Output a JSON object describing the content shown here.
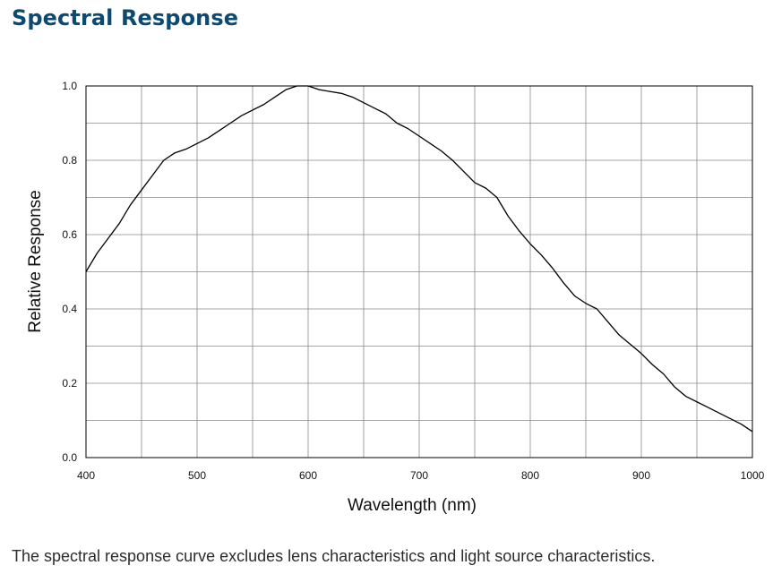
{
  "page": {
    "title": "Spectral Response",
    "footnote": "The spectral response curve excludes lens characteristics and light source characteristics."
  },
  "colors": {
    "title": "#0b4a72",
    "curve": "#000000",
    "grid": "#8a8a8a",
    "frame": "#000000"
  },
  "chart_data": {
    "type": "line",
    "title": "",
    "xlabel": "Wavelength (nm)",
    "ylabel": "Relative Response",
    "xlim": [
      400,
      1000
    ],
    "ylim": [
      0.0,
      1.0
    ],
    "grid": true,
    "x_ticks": [
      400,
      500,
      600,
      700,
      800,
      900,
      1000
    ],
    "x_tick_labels": [
      "400",
      "500",
      "600",
      "700",
      "800",
      "900",
      "1000"
    ],
    "y_ticks": [
      0.0,
      0.2,
      0.4,
      0.6,
      0.8,
      1.0
    ],
    "y_tick_labels": [
      "0.0",
      "0.2",
      "0.4",
      "0.6",
      "0.8",
      "1.0"
    ],
    "series": [
      {
        "x": [
          400,
          410,
          420,
          430,
          440,
          450,
          460,
          470,
          480,
          490,
          500,
          510,
          520,
          530,
          540,
          550,
          560,
          570,
          580,
          590,
          600,
          610,
          620,
          630,
          640,
          650,
          660,
          670,
          680,
          690,
          700,
          710,
          720,
          730,
          740,
          750,
          760,
          770,
          780,
          790,
          800,
          810,
          820,
          830,
          840,
          850,
          860,
          870,
          880,
          890,
          900,
          910,
          920,
          930,
          940,
          950,
          960,
          970,
          980,
          990,
          1000
        ],
        "y": [
          0.5,
          0.55,
          0.59,
          0.63,
          0.68,
          0.72,
          0.76,
          0.8,
          0.82,
          0.83,
          0.845,
          0.86,
          0.88,
          0.9,
          0.92,
          0.935,
          0.95,
          0.97,
          0.99,
          1.0,
          1.0,
          0.99,
          0.985,
          0.98,
          0.97,
          0.955,
          0.94,
          0.925,
          0.9,
          0.885,
          0.865,
          0.845,
          0.825,
          0.8,
          0.77,
          0.74,
          0.725,
          0.7,
          0.65,
          0.61,
          0.575,
          0.545,
          0.51,
          0.47,
          0.435,
          0.415,
          0.4,
          0.365,
          0.33,
          0.305,
          0.28,
          0.25,
          0.225,
          0.19,
          0.165,
          0.15,
          0.135,
          0.12,
          0.105,
          0.09,
          0.07
        ]
      }
    ]
  }
}
